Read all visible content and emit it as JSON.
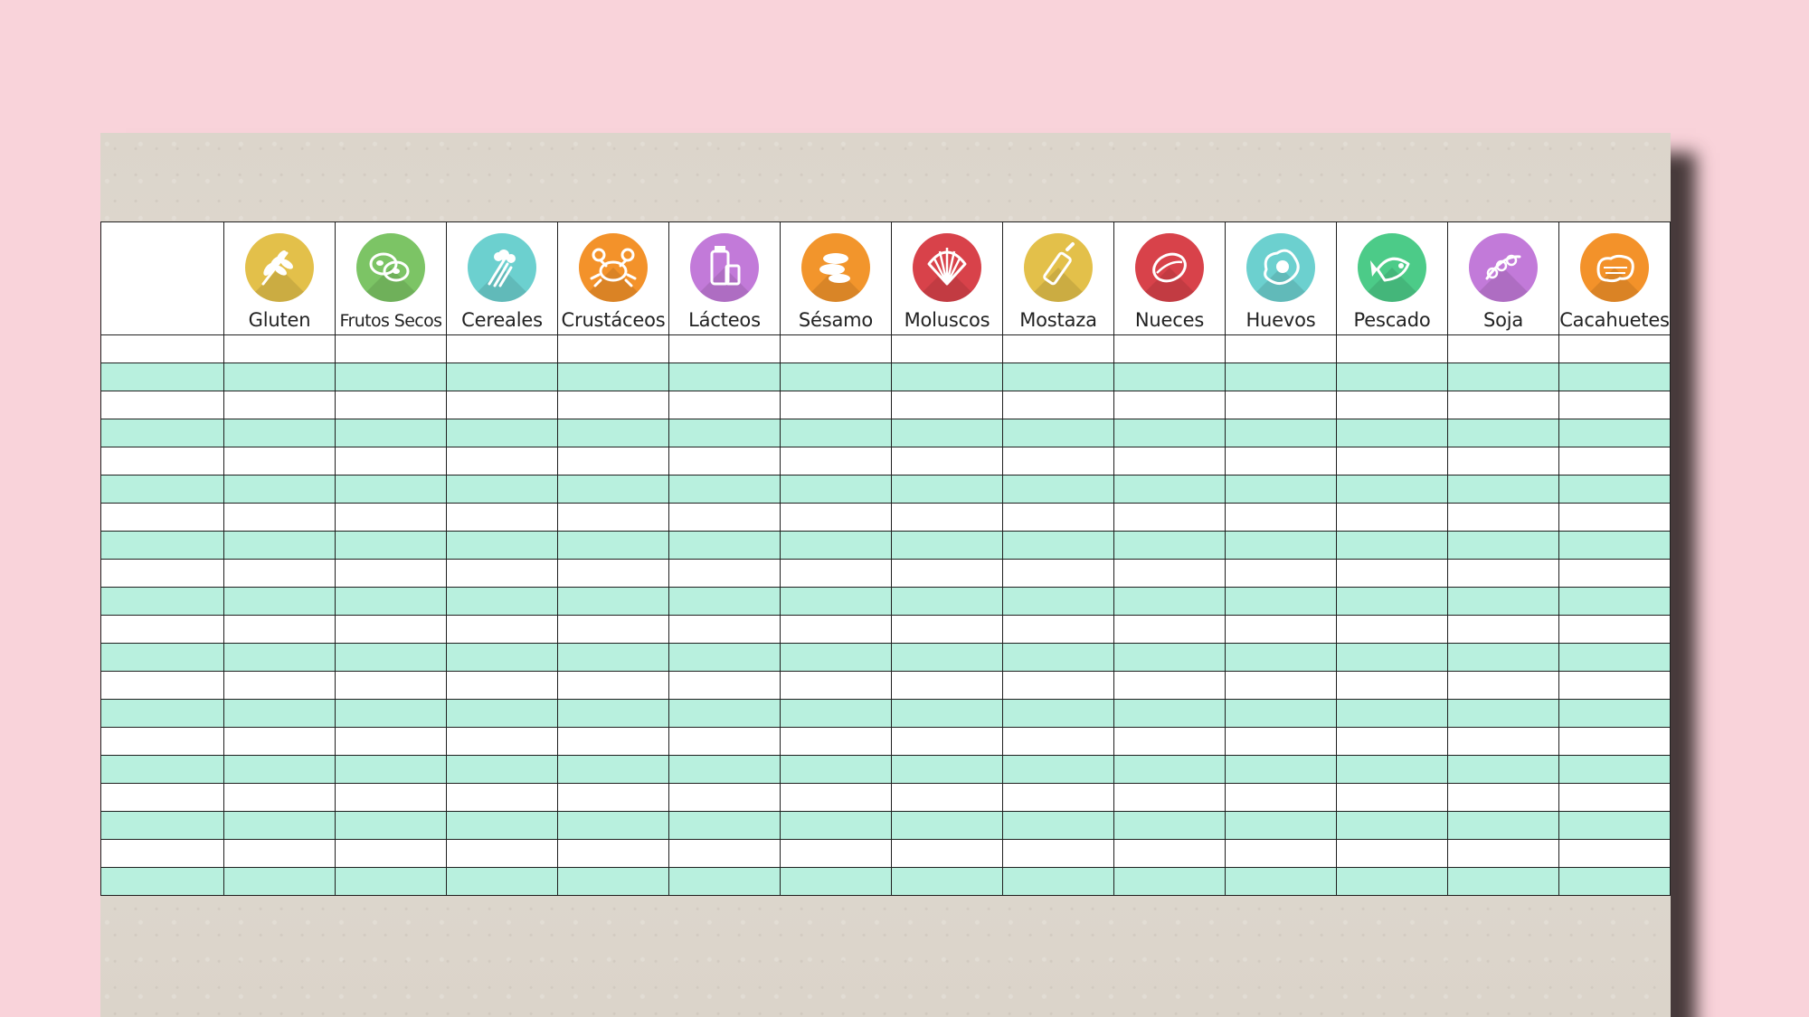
{
  "allergens": [
    {
      "label": "Gluten",
      "icon": "wheat-icon",
      "color": "#e3c04a"
    },
    {
      "label": "Frutos Secos",
      "icon": "nuts-icon",
      "color": "#7cc465"
    },
    {
      "label": "Cereales",
      "icon": "celery-icon",
      "color": "#6cd0cf"
    },
    {
      "label": "Crustáceos",
      "icon": "crab-icon",
      "color": "#f3922a"
    },
    {
      "label": "Lácteos",
      "icon": "milk-icon",
      "color": "#c27ad9"
    },
    {
      "label": "Sésamo",
      "icon": "sesame-icon",
      "color": "#f2952c"
    },
    {
      "label": "Moluscos",
      "icon": "shell-icon",
      "color": "#d8424a"
    },
    {
      "label": "Mostaza",
      "icon": "mustard-icon",
      "color": "#e3c04a"
    },
    {
      "label": "Nueces",
      "icon": "walnut-icon",
      "color": "#d8424a"
    },
    {
      "label": "Huevos",
      "icon": "egg-icon",
      "color": "#6cd0cf"
    },
    {
      "label": "Pescado",
      "icon": "fish-icon",
      "color": "#4ccb88"
    },
    {
      "label": "Soja",
      "icon": "soy-icon",
      "color": "#c27ad9"
    },
    {
      "label": "Cacahuetes",
      "icon": "peanut-icon",
      "color": "#f3922a"
    }
  ],
  "row_colors": {
    "even": "#ffffff",
    "odd": "#b8f0de"
  },
  "row_count": 20
}
